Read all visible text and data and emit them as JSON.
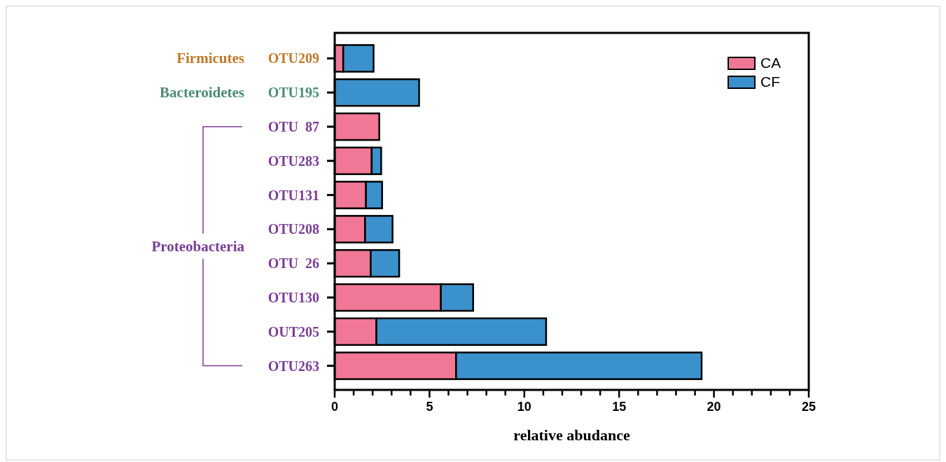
{
  "chart_data": {
    "type": "bar",
    "orientation": "horizontal",
    "stacked": true,
    "xlabel": "relative abudance",
    "categories": [
      "OTU209",
      "OTU195",
      "OTU  87",
      "OTU283",
      "OTU131",
      "OTU208",
      "OTU  26",
      "OTU130",
      "OUT205",
      "OTU263"
    ],
    "series": [
      {
        "name": "CA",
        "color": "#f07795",
        "values": [
          0.45,
          0,
          2.35,
          1.95,
          1.65,
          1.6,
          1.9,
          5.6,
          2.2,
          6.4
        ]
      },
      {
        "name": "CF",
        "color": "#3b91cc",
        "values": [
          1.6,
          4.45,
          0,
          0.5,
          0.85,
          1.45,
          1.5,
          1.7,
          8.95,
          12.95
        ]
      }
    ],
    "xlim": [
      0,
      25
    ],
    "xticks": [
      0,
      {
        "value": 1,
        "label": null
      },
      {
        "value": 2,
        "label": null
      },
      {
        "value": 3,
        "label": null
      },
      {
        "value": 4,
        "label": null
      },
      5,
      {
        "value": 6,
        "label": null
      },
      {
        "value": 7,
        "label": null
      },
      {
        "value": 8,
        "label": null
      },
      {
        "value": 9,
        "label": null
      },
      10,
      {
        "value": 11,
        "label": null
      },
      {
        "value": 12,
        "label": null
      },
      {
        "value": 13,
        "label": null
      },
      {
        "value": 14,
        "label": null
      },
      15,
      {
        "value": 16,
        "label": null
      },
      {
        "value": 17,
        "label": null
      },
      {
        "value": 18,
        "label": null
      },
      {
        "value": 19,
        "label": null
      },
      20,
      {
        "value": 21,
        "label": null
      },
      {
        "value": 22,
        "label": null
      },
      {
        "value": 23,
        "label": null
      },
      {
        "value": 24,
        "label": null
      },
      25
    ],
    "annotations": [
      "Firmicutes",
      "Bacteroidetes",
      "Proteobacteria"
    ],
    "legend": "top right",
    "grid": false
  }
}
